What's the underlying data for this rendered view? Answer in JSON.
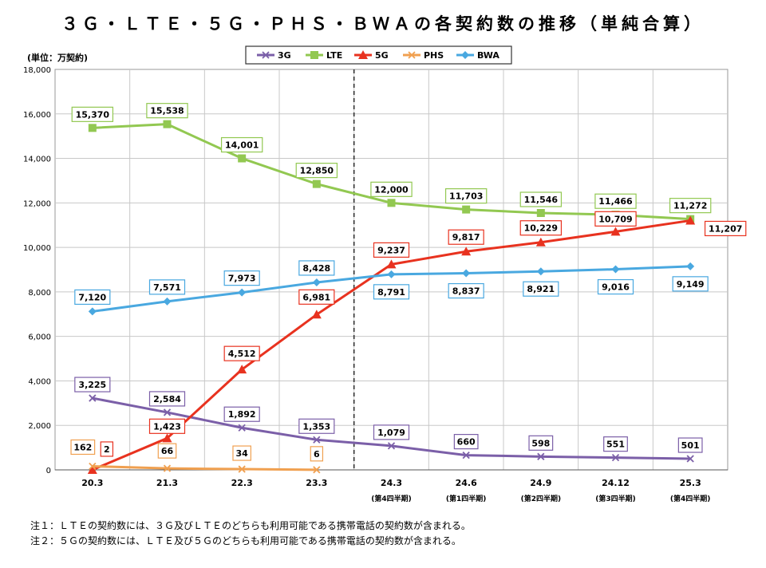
{
  "title": "３Ｇ・ＬＴＥ・５Ｇ・ＰＨＳ・ＢＷＡの各契約数の推移（単純合算）",
  "unit_label": "(単位：万契約)",
  "notes": [
    "注１：ＬＴＥの契約数には、３Ｇ及びＬＴＥのどちらも利用可能である携帯電話の契約数が含まれる。",
    "注２：５Ｇの契約数には、ＬＴＥ及び５Ｇのどちらも利用可能である携帯電話の契約数が含まれる。"
  ],
  "colors": {
    "3G": "#7b5fa8",
    "LTE": "#92c851",
    "5G": "#e8321f",
    "PHS": "#f0a050",
    "BWA": "#49a8e0",
    "grid": "#c8c8c8",
    "divider": "#333333"
  },
  "chart_data": {
    "type": "line",
    "title": "３Ｇ・ＬＴＥ・５Ｇ・ＰＨＳ・ＢＷＡの各契約数の推移（単純合算）",
    "ylabel": "(単位：万契約)",
    "xlabel": "",
    "categories": [
      "20.3",
      "21.3",
      "22.3",
      "23.3",
      "24.3",
      "24.6",
      "24.9",
      "24.12",
      "25.3"
    ],
    "sublabels": [
      "",
      "",
      "",
      "",
      "(第4四半期)",
      "(第1四半期)",
      "(第2四半期)",
      "(第3四半期)",
      "(第4四半期)"
    ],
    "ylim": [
      0,
      18000
    ],
    "yticks": [
      0,
      2000,
      4000,
      6000,
      8000,
      10000,
      12000,
      14000,
      16000,
      18000
    ],
    "ytick_labels": [
      "0",
      "2,000",
      "4,000",
      "6,000",
      "8,000",
      "10,000",
      "12,000",
      "14,000",
      "16,000",
      "18,000"
    ],
    "grid": true,
    "legend_position": "top-center",
    "divider_after_category": "23.3",
    "series": [
      {
        "name": "3G",
        "marker": "x",
        "values": [
          3225,
          2584,
          1892,
          1353,
          1079,
          660,
          598,
          551,
          501
        ],
        "labels": [
          "3,225",
          "2,584",
          "1,892",
          "1,353",
          "1,079",
          "660",
          "598",
          "551",
          "501"
        ]
      },
      {
        "name": "LTE",
        "marker": "square",
        "values": [
          15370,
          15538,
          14001,
          12850,
          12000,
          11703,
          11546,
          11466,
          11272
        ],
        "labels": [
          "15,370",
          "15,538",
          "14,001",
          "12,850",
          "12,000",
          "11,703",
          "11,546",
          "11,466",
          "11,272"
        ]
      },
      {
        "name": "5G",
        "marker": "triangle",
        "values": [
          2,
          1423,
          4512,
          6981,
          9237,
          9817,
          10229,
          10709,
          11207
        ],
        "labels": [
          "2",
          "1,423",
          "4,512",
          "6,981",
          "9,237",
          "9,817",
          "10,229",
          "10,709",
          "11,207"
        ]
      },
      {
        "name": "PHS",
        "marker": "x",
        "values": [
          162,
          66,
          34,
          6,
          null,
          null,
          null,
          null,
          null
        ],
        "labels": [
          "162",
          "66",
          "34",
          "6",
          "",
          "",
          "",
          "",
          ""
        ]
      },
      {
        "name": "BWA",
        "marker": "diamond",
        "values": [
          7120,
          7571,
          7973,
          8428,
          8791,
          8837,
          8921,
          9016,
          9149
        ],
        "labels": [
          "7,120",
          "7,571",
          "7,973",
          "8,428",
          "8,791",
          "8,837",
          "8,921",
          "9,016",
          "9,149"
        ]
      }
    ]
  }
}
